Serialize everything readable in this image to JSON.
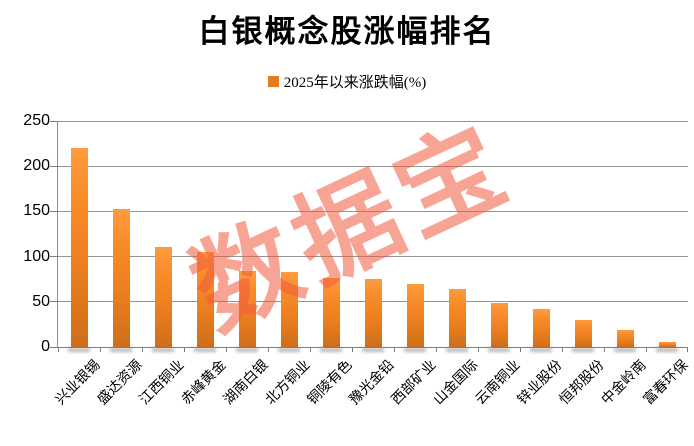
{
  "title": "白银概念股涨幅排名",
  "watermark": "数据宝",
  "legend": {
    "label": "2025年以来涨跌幅(%)",
    "swatch_color": "#e8791f"
  },
  "chart_data": {
    "type": "bar",
    "title": "白银概念股涨幅排名",
    "legend_entries": [
      "2025年以来涨跌幅(%)"
    ],
    "legend_position": "top",
    "categories": [
      "兴业银锡",
      "盛达资源",
      "江西铜业",
      "赤峰黄金",
      "湖南白银",
      "北方铜业",
      "铜陵有色",
      "豫光金铅",
      "西部矿业",
      "山金国际",
      "云南铜业",
      "锌业股份",
      "恒邦股份",
      "中金岭南",
      "富春环保"
    ],
    "values": [
      220,
      153,
      111,
      105,
      84,
      83,
      76,
      75,
      70,
      64,
      49,
      42,
      30,
      19,
      6
    ],
    "xlabel": "",
    "ylabel": "",
    "ylim": [
      0,
      250
    ],
    "yticks": [
      0,
      50,
      100,
      150,
      200,
      250
    ],
    "grid": true,
    "bar_color_top": "#fe9c3e",
    "bar_color_bottom": "#cf6e19",
    "gridline_color": "#949494",
    "watermark_color": "rgba(240,90,62,0.55)"
  }
}
